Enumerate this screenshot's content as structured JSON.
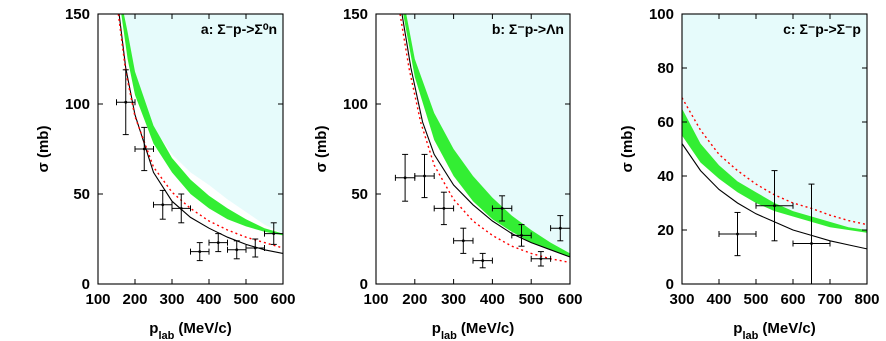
{
  "chart_data": [
    {
      "type": "line",
      "panel_label": "a: Σ⁻p->Σ⁰n",
      "xlabel": "p_lab (MeV/c)",
      "ylabel": "σ (mb)",
      "xlim": [
        100,
        600
      ],
      "ylim": [
        0,
        150
      ],
      "xticks": [
        100,
        200,
        300,
        400,
        500,
        600
      ],
      "yticks": [
        0,
        50,
        100,
        150
      ],
      "shaded_region": {
        "color": "#e6fbfb",
        "lower": [
          [
            160,
            150
          ],
          [
            200,
            112
          ],
          [
            250,
            87
          ],
          [
            300,
            72
          ],
          [
            350,
            62
          ],
          [
            400,
            55
          ],
          [
            450,
            47
          ],
          [
            500,
            40
          ],
          [
            550,
            33
          ],
          [
            600,
            28
          ]
        ]
      },
      "band": {
        "color": "#33ee33",
        "lower": [
          [
            163,
            150
          ],
          [
            180,
            125
          ],
          [
            200,
            105
          ],
          [
            250,
            78
          ],
          [
            300,
            62
          ],
          [
            350,
            50
          ],
          [
            400,
            42
          ],
          [
            450,
            36
          ],
          [
            500,
            32
          ],
          [
            550,
            29
          ],
          [
            600,
            27
          ]
        ],
        "upper": [
          [
            170,
            150
          ],
          [
            180,
            140
          ],
          [
            200,
            118
          ],
          [
            250,
            88
          ],
          [
            300,
            70
          ],
          [
            350,
            58
          ],
          [
            400,
            49
          ],
          [
            450,
            42
          ],
          [
            500,
            36
          ],
          [
            550,
            31
          ],
          [
            600,
            28
          ]
        ]
      },
      "curves": [
        {
          "style": "solid",
          "color": "#000000",
          "points": [
            [
              157,
              150
            ],
            [
              175,
              120
            ],
            [
              200,
              94
            ],
            [
              250,
              62
            ],
            [
              300,
              46
            ],
            [
              350,
              37
            ],
            [
              400,
              31
            ],
            [
              450,
              26
            ],
            [
              500,
              22
            ],
            [
              550,
              19
            ],
            [
              600,
              17
            ]
          ]
        },
        {
          "style": "dotted",
          "color": "#ff0000",
          "points": [
            [
              155,
              150
            ],
            [
              175,
              118
            ],
            [
              200,
              93
            ],
            [
              250,
              65
            ],
            [
              300,
              51
            ],
            [
              350,
              42
            ],
            [
              400,
              35
            ],
            [
              450,
              30
            ],
            [
              500,
              26
            ],
            [
              550,
              23
            ],
            [
              600,
              20
            ]
          ]
        }
      ],
      "points": [
        {
          "x": 175,
          "y": 101,
          "xerr": 25,
          "yerr": 18
        },
        {
          "x": 225,
          "y": 75,
          "xerr": 25,
          "yerr": 12
        },
        {
          "x": 275,
          "y": 44,
          "xerr": 25,
          "yerr": 8
        },
        {
          "x": 325,
          "y": 42,
          "xerr": 25,
          "yerr": 8
        },
        {
          "x": 375,
          "y": 18,
          "xerr": 25,
          "yerr": 5
        },
        {
          "x": 425,
          "y": 23,
          "xerr": 25,
          "yerr": 5
        },
        {
          "x": 475,
          "y": 19,
          "xerr": 25,
          "yerr": 5
        },
        {
          "x": 525,
          "y": 20,
          "xerr": 25,
          "yerr": 5
        },
        {
          "x": 575,
          "y": 28,
          "xerr": 25,
          "yerr": 6
        }
      ]
    },
    {
      "type": "line",
      "panel_label": "b: Σ⁻p->Λn",
      "xlabel": "p_lab (MeV/c)",
      "ylabel": "σ (mb)",
      "xlim": [
        100,
        600
      ],
      "ylim": [
        0,
        150
      ],
      "xticks": [
        100,
        200,
        300,
        400,
        500,
        600
      ],
      "yticks": [
        0,
        50,
        100,
        150
      ],
      "shaded_region": {
        "color": "#e6fbfb",
        "lower": [
          [
            178,
            150
          ],
          [
            200,
            125
          ],
          [
            250,
            95
          ],
          [
            300,
            75
          ],
          [
            350,
            60
          ],
          [
            400,
            48
          ],
          [
            450,
            38
          ],
          [
            500,
            30
          ],
          [
            550,
            23
          ],
          [
            600,
            17
          ]
        ]
      },
      "band": {
        "color": "#33ee33",
        "lower": [
          [
            170,
            150
          ],
          [
            200,
            115
          ],
          [
            250,
            80
          ],
          [
            300,
            60
          ],
          [
            350,
            46
          ],
          [
            400,
            36
          ],
          [
            450,
            29
          ],
          [
            500,
            23
          ],
          [
            550,
            19
          ],
          [
            600,
            15
          ]
        ],
        "upper": [
          [
            178,
            150
          ],
          [
            200,
            125
          ],
          [
            250,
            95
          ],
          [
            300,
            75
          ],
          [
            350,
            60
          ],
          [
            400,
            48
          ],
          [
            450,
            38
          ],
          [
            500,
            30
          ],
          [
            550,
            23
          ],
          [
            600,
            17
          ]
        ]
      },
      "curves": [
        {
          "style": "solid",
          "color": "#000000",
          "points": [
            [
              167,
              150
            ],
            [
              190,
              120
            ],
            [
              220,
              90
            ],
            [
              250,
              72
            ],
            [
              300,
              55
            ],
            [
              350,
              44
            ],
            [
              400,
              35
            ],
            [
              450,
              28
            ],
            [
              500,
              23
            ],
            [
              550,
              19
            ],
            [
              600,
              15
            ]
          ]
        },
        {
          "style": "dotted",
          "color": "#ff0000",
          "points": [
            [
              162,
              150
            ],
            [
              185,
              120
            ],
            [
              215,
              90
            ],
            [
              250,
              66
            ],
            [
              300,
              47
            ],
            [
              350,
              35
            ],
            [
              400,
              27
            ],
            [
              450,
              21
            ],
            [
              500,
              17
            ],
            [
              550,
              14
            ],
            [
              600,
              12
            ]
          ]
        }
      ],
      "points": [
        {
          "x": 175,
          "y": 59,
          "xerr": 25,
          "yerr": 13
        },
        {
          "x": 225,
          "y": 60,
          "xerr": 25,
          "yerr": 12
        },
        {
          "x": 275,
          "y": 42,
          "xerr": 25,
          "yerr": 9
        },
        {
          "x": 325,
          "y": 24,
          "xerr": 25,
          "yerr": 7
        },
        {
          "x": 375,
          "y": 13,
          "xerr": 25,
          "yerr": 4
        },
        {
          "x": 425,
          "y": 42,
          "xerr": 25,
          "yerr": 7
        },
        {
          "x": 475,
          "y": 27,
          "xerr": 25,
          "yerr": 6
        },
        {
          "x": 525,
          "y": 14,
          "xerr": 25,
          "yerr": 4
        },
        {
          "x": 575,
          "y": 31,
          "xerr": 25,
          "yerr": 7
        }
      ]
    },
    {
      "type": "line",
      "panel_label": "c: Σ⁻p->Σ⁻p",
      "xlabel": "p_lab (MeV/c)",
      "ylabel": "σ (mb)",
      "xlim": [
        300,
        800
      ],
      "ylim": [
        0,
        100
      ],
      "xticks": [
        300,
        400,
        500,
        600,
        700,
        800
      ],
      "yticks": [
        0,
        20,
        40,
        60,
        80,
        100
      ],
      "shaded_region": {
        "color": "#e6fbfb",
        "lower": [
          [
            300,
            65
          ],
          [
            350,
            52
          ],
          [
            400,
            44
          ],
          [
            450,
            38
          ],
          [
            500,
            34
          ],
          [
            550,
            30
          ],
          [
            600,
            27
          ],
          [
            650,
            25
          ],
          [
            700,
            23
          ],
          [
            750,
            21
          ],
          [
            800,
            20
          ]
        ]
      },
      "band": {
        "color": "#33ee33",
        "lower": [
          [
            300,
            55
          ],
          [
            350,
            45
          ],
          [
            400,
            39
          ],
          [
            450,
            34
          ],
          [
            500,
            30
          ],
          [
            550,
            27
          ],
          [
            600,
            25
          ],
          [
            650,
            23
          ],
          [
            700,
            21
          ],
          [
            750,
            20
          ],
          [
            800,
            19
          ]
        ],
        "upper": [
          [
            300,
            65
          ],
          [
            350,
            52
          ],
          [
            400,
            44
          ],
          [
            450,
            38
          ],
          [
            500,
            34
          ],
          [
            550,
            30
          ],
          [
            600,
            27
          ],
          [
            650,
            25
          ],
          [
            700,
            23
          ],
          [
            750,
            21
          ],
          [
            800,
            20
          ]
        ]
      },
      "curves": [
        {
          "style": "solid",
          "color": "#000000",
          "points": [
            [
              300,
              52
            ],
            [
              350,
              42
            ],
            [
              400,
              35
            ],
            [
              450,
              30
            ],
            [
              500,
              26
            ],
            [
              550,
              23
            ],
            [
              600,
              20
            ],
            [
              650,
              18
            ],
            [
              700,
              16
            ],
            [
              750,
              14.5
            ],
            [
              800,
              13
            ]
          ]
        },
        {
          "style": "dotted",
          "color": "#ff0000",
          "points": [
            [
              300,
              69
            ],
            [
              350,
              57
            ],
            [
              400,
              48
            ],
            [
              450,
              42
            ],
            [
              500,
              37
            ],
            [
              550,
              33
            ],
            [
              600,
              30
            ],
            [
              650,
              28
            ],
            [
              700,
              25.5
            ],
            [
              750,
              23.5
            ],
            [
              800,
              22
            ]
          ]
        }
      ],
      "points": [
        {
          "x": 450,
          "y": 18.5,
          "xerr": 50,
          "yerr": 8
        },
        {
          "x": 550,
          "y": 29,
          "xerr": 50,
          "yerr": 13
        },
        {
          "x": 650,
          "y": 15,
          "xerr": 50,
          "yerr": 22
        }
      ]
    }
  ]
}
